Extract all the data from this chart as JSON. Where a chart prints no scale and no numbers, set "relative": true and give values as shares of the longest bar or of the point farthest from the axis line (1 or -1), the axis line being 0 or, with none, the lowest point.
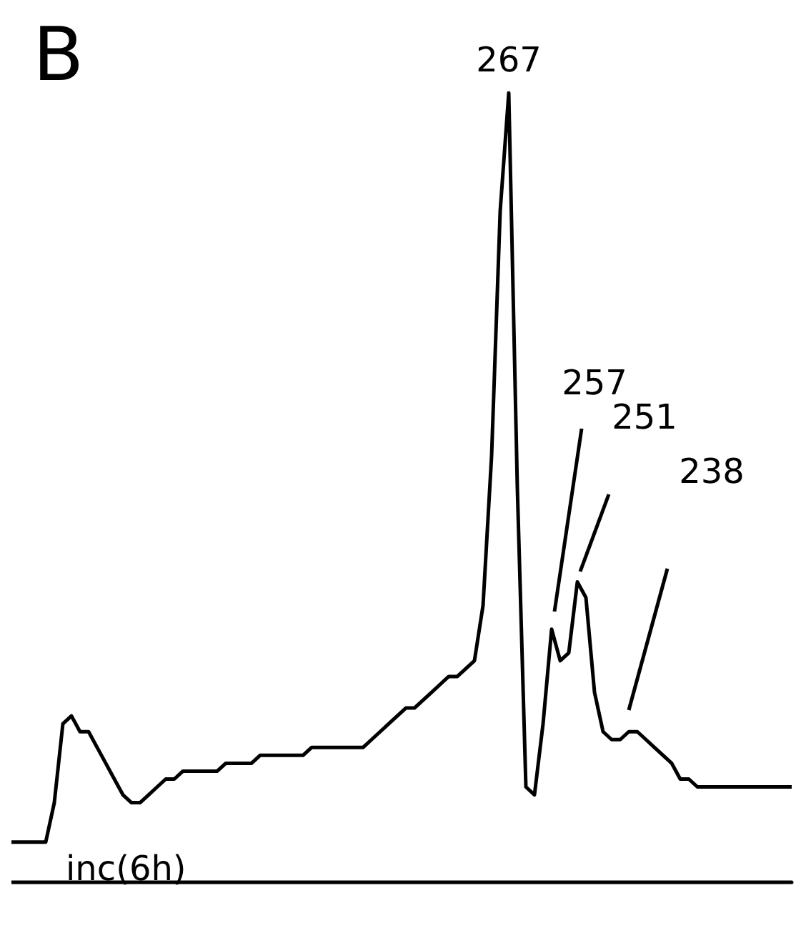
{
  "chart_data": {
    "type": "line",
    "title": "B",
    "relative": true,
    "color": "#000000",
    "grid": false,
    "categories": [
      null,
      null,
      null,
      null,
      null,
      null,
      null,
      null,
      null,
      null,
      null,
      null,
      null,
      null,
      null,
      null,
      null,
      null,
      null,
      null,
      null,
      null,
      null,
      null,
      null,
      null,
      null,
      null,
      null,
      null,
      null,
      null,
      null,
      null,
      null,
      null,
      null,
      null,
      null,
      null,
      null,
      null,
      null,
      null,
      null,
      null,
      null,
      null,
      null,
      null,
      null,
      null,
      null,
      null,
      null,
      null,
      null,
      null,
      null,
      null,
      null,
      null,
      null,
      null,
      null,
      null,
      null,
      null,
      null,
      null,
      null,
      null,
      null,
      null,
      null,
      null,
      null,
      null,
      null,
      null,
      null,
      null,
      null,
      null,
      null,
      null,
      null,
      null,
      null,
      null,
      null,
      null
    ],
    "values": [
      0.05,
      0.05,
      0.05,
      0.05,
      0.05,
      0.1,
      0.2,
      0.21,
      0.19,
      0.19,
      0.17,
      0.15,
      0.13,
      0.11,
      0.1,
      0.1,
      0.11,
      0.12,
      0.13,
      0.13,
      0.14,
      0.14,
      0.14,
      0.14,
      0.14,
      0.15,
      0.15,
      0.15,
      0.15,
      0.16,
      0.16,
      0.16,
      0.16,
      0.16,
      0.16,
      0.17,
      0.17,
      0.17,
      0.17,
      0.17,
      0.17,
      0.17,
      0.18,
      0.19,
      0.2,
      0.21,
      0.22,
      0.22,
      0.23,
      0.24,
      0.25,
      0.26,
      0.26,
      0.27,
      0.28,
      0.35,
      0.54,
      0.85,
      1,
      0.5,
      0.12,
      0.11,
      0.2,
      0.32,
      0.28,
      0.29,
      0.38,
      0.36,
      0.24,
      0.19,
      0.18,
      0.18,
      0.19,
      0.19,
      0.18,
      0.17,
      0.16,
      0.15,
      0.13,
      0.13,
      0.12,
      0.12,
      0.12,
      0.12,
      0.12,
      0.12,
      0.12,
      0.12,
      0.12,
      0.12,
      0.12,
      0.12
    ],
    "annotations": [
      "267",
      "257",
      "251",
      "238",
      "inc(6h)"
    ]
  }
}
